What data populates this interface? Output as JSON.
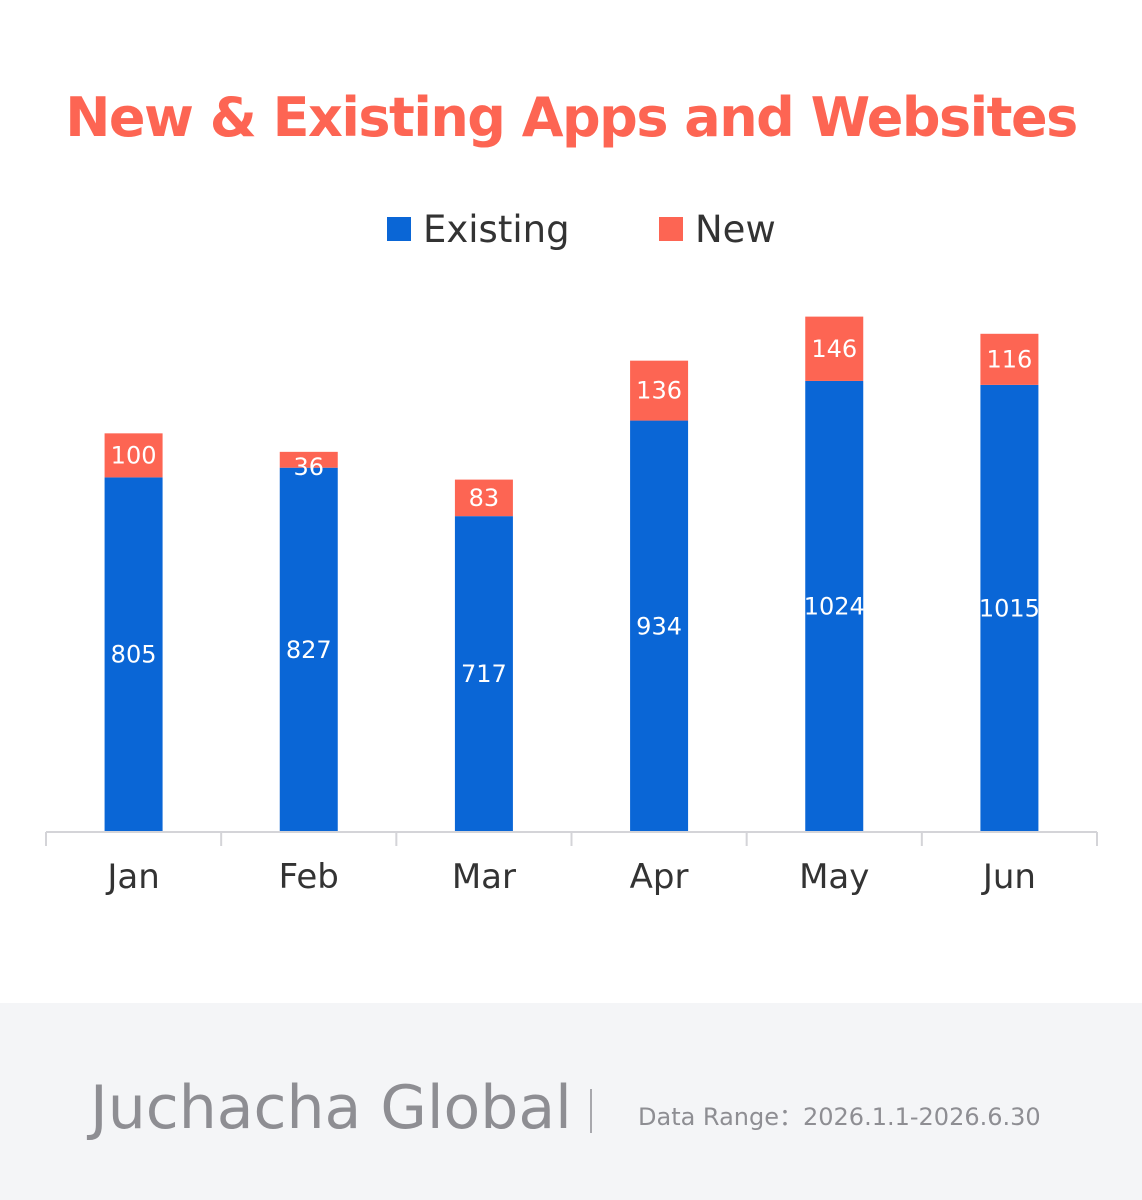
{
  "colors": {
    "existing": "#0a66d6",
    "new": "#fd6553",
    "title": "#fd6553",
    "axis": "#d4d4d8",
    "label_inside": "#ffffff",
    "tick_label": "#333333"
  },
  "chart_data": {
    "type": "bar",
    "stacked": true,
    "title": "New & Existing Apps and Websites",
    "categories": [
      "Jan",
      "Feb",
      "Mar",
      "Apr",
      "May",
      "Jun"
    ],
    "series": [
      {
        "name": "Existing",
        "values": [
          805,
          827,
          717,
          934,
          1024,
          1015
        ]
      },
      {
        "name": "New",
        "values": [
          100,
          36,
          83,
          136,
          146,
          116
        ]
      }
    ],
    "legend_position": "top-center",
    "grid": false,
    "data_labels": true
  },
  "footer": {
    "brand": "Juchacha Global",
    "divider": "|",
    "data_range": "Data Range：2026.1.1-2026.6.30"
  }
}
